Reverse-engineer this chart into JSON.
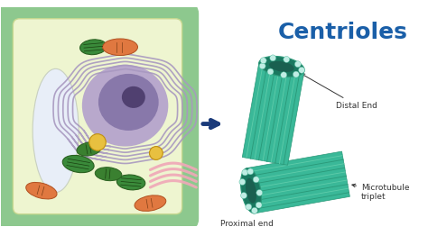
{
  "title": "Centrioles",
  "title_color": "#1a5fa8",
  "title_fontsize": 18,
  "title_fontweight": "bold",
  "bg_color": "#ffffff",
  "arrow_color": "#1a3a7a",
  "label_distal": "Distal End",
  "label_proximal": "Proximal end",
  "label_microtubule": "Microtubule\ntriplet",
  "cell_outer_color": "#8dc88e",
  "cell_inner_color": "#eef5d0",
  "cell_wall_color": "#7ab87b",
  "vacuole_color": "#dde8f5",
  "nucleus_outer_color": "#b8a8cc",
  "nucleus_inner_color": "#8878aa",
  "nucleolus_color": "#504070",
  "er_color": "#a898c0",
  "chloroplast_color": "#3a8a3a",
  "mitochondria_color": "#e07840",
  "golgi_color": "#f0a8b8",
  "centriole_body": "#3ab898",
  "centriole_dark": "#1a7860",
  "centriole_stripe_light": "#60ccaa",
  "centriole_stripe_dark": "#2a9878",
  "centriole_end_fill": "#1a7860",
  "centriole_bead": "#c0ede4",
  "centriole_bead_edge": "#4ab898",
  "annotation_fontsize": 6.5,
  "annotation_color": "#333333"
}
